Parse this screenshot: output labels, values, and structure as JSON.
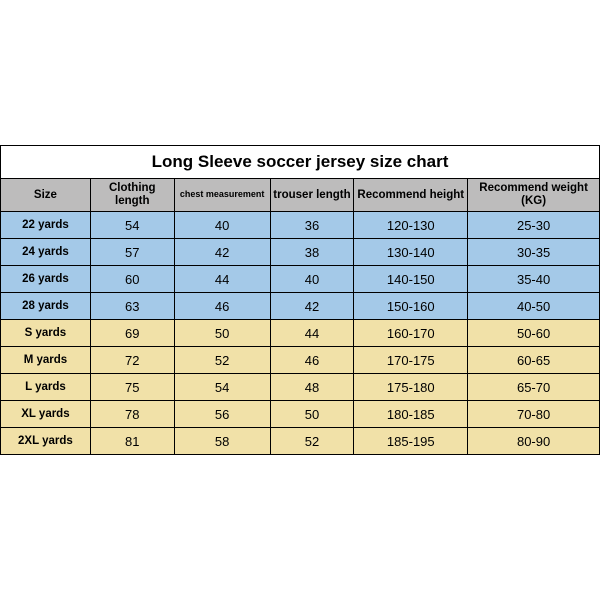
{
  "table": {
    "title": "Long Sleeve soccer jersey size chart",
    "columns": [
      "Size",
      "Clothing length",
      "chest measurement",
      "trouser length",
      "Recommend height",
      "Recommend weight (KG)"
    ],
    "col_widths_pct": [
      15,
      14,
      16,
      14,
      19,
      22
    ],
    "title_fontsize": 17,
    "header_bg": "#bdbcbc",
    "border_color": "#000000",
    "groups": [
      {
        "bg": "#a4c9e8",
        "rows": [
          [
            "22 yards",
            "54",
            "40",
            "36",
            "120-130",
            "25-30"
          ],
          [
            "24 yards",
            "57",
            "42",
            "38",
            "130-140",
            "30-35"
          ],
          [
            "26 yards",
            "60",
            "44",
            "40",
            "140-150",
            "35-40"
          ],
          [
            "28 yards",
            "63",
            "46",
            "42",
            "150-160",
            "40-50"
          ]
        ]
      },
      {
        "bg": "#f1e1a8",
        "rows": [
          [
            "S yards",
            "69",
            "50",
            "44",
            "160-170",
            "50-60"
          ],
          [
            "M yards",
            "72",
            "52",
            "46",
            "170-175",
            "60-65"
          ],
          [
            "L yards",
            "75",
            "54",
            "48",
            "175-180",
            "65-70"
          ],
          [
            "XL yards",
            "78",
            "56",
            "50",
            "180-185",
            "70-80"
          ],
          [
            "2XL yards",
            "81",
            "58",
            "52",
            "185-195",
            "80-90"
          ]
        ]
      }
    ]
  }
}
